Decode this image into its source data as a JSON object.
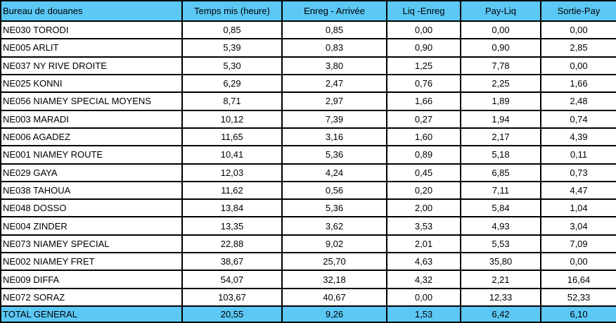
{
  "table": {
    "headers": [
      "Bureau de douanes",
      "Temps mis (heure)",
      "Enreg - Arrivée",
      "Liq -Enreg",
      "Pay-Liq",
      "Sortie-Pay"
    ],
    "rows": [
      [
        "NE030  TORODI",
        "0,85",
        "0,85",
        "0,00",
        "0,00",
        "0,00"
      ],
      [
        "NE005  ARLIT",
        "5,39",
        "0,83",
        "0,90",
        "0,90",
        "2,85"
      ],
      [
        "NE037  NY RIVE DROITE",
        "5,30",
        "3,80",
        "1,25",
        "7,78",
        "0,00"
      ],
      [
        "NE025  KONNI",
        "6,29",
        "2,47",
        "0,76",
        "2,25",
        "1,66"
      ],
      [
        "NE056  NIAMEY SPECIAL MOYENS",
        "8,71",
        "2,97",
        "1,66",
        "1,89",
        "2,48"
      ],
      [
        "NE003  MARADI",
        "10,12",
        "7,39",
        "0,27",
        "1,94",
        "0,74"
      ],
      [
        "NE006  AGADEZ",
        "11,65",
        "3,16",
        "1,60",
        "2,17",
        "4,39"
      ],
      [
        "NE001  NIAMEY ROUTE",
        "10,41",
        "5,36",
        "0,89",
        "5,18",
        "0,11"
      ],
      [
        "NE029  GAYA",
        "12,03",
        "4,24",
        "0,45",
        "6,85",
        "0,73"
      ],
      [
        "NE038  TAHOUA",
        "11,62",
        "0,56",
        "0,20",
        "7,11",
        "4,47"
      ],
      [
        "NE048  DOSSO",
        "13,84",
        "5,36",
        "2,00",
        "5,84",
        "1,04"
      ],
      [
        "NE004  ZINDER",
        "13,35",
        "3,62",
        "3,53",
        "4,93",
        "3,04"
      ],
      [
        "NE073  NIAMEY SPECIAL",
        "22,88",
        "9,02",
        "2,01",
        "5,53",
        "7,09"
      ],
      [
        "NE002  NIAMEY FRET",
        "38,67",
        "25,70",
        "4,63",
        "35,80",
        "0,00"
      ],
      [
        "NE009  DIFFA",
        "54,07",
        "32,18",
        "4,32",
        "2,21",
        "16,64"
      ],
      [
        "NE072  SORAZ",
        "103,67",
        "40,67",
        "0,00",
        "12,33",
        "52,33"
      ]
    ],
    "total": [
      "TOTAL GENERAL",
      "20,55",
      "9,26",
      "1,53",
      "6,42",
      "6,10"
    ]
  },
  "colors": {
    "header_bg": "#5bc8f5",
    "border": "#000000",
    "body_bg": "#ffffff"
  }
}
